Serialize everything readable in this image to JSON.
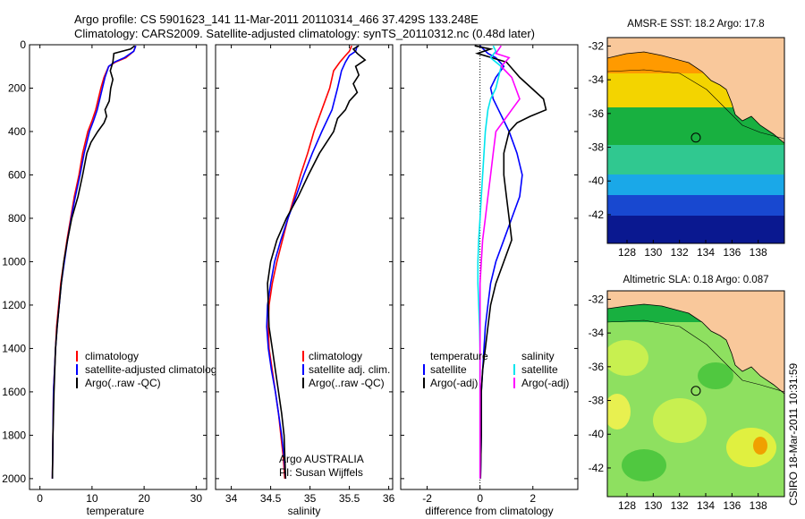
{
  "header": {
    "line1": "Argo profile: CS 5901623_141 11-Mar-2011 20110314_466 37.429S 133.248E",
    "line2": "Climatology: CARS2009. Satellite-adjusted climatology: synTS_20110312.nc (0.48d later)"
  },
  "colors": {
    "climatology": "#ff0000",
    "satellite": "#0000ff",
    "argo": "#000000",
    "argo_adj": "#ff00ff",
    "satellite_sal": "#00e5ee",
    "land": "#f9c89b"
  },
  "chart_data": [
    {
      "type": "line",
      "id": "temperature",
      "xlabel": "temperature",
      "xlim": [
        -2,
        32
      ],
      "ylim": [
        0,
        2050
      ],
      "xticks": [
        0,
        10,
        20,
        30
      ],
      "yticks": [
        0,
        200,
        400,
        600,
        800,
        1000,
        1200,
        1400,
        1600,
        1800,
        2000
      ],
      "y_reversed": true,
      "legend": [
        "climatology",
        "satellite-adjusted climatology",
        "Argo(..raw -QC)"
      ],
      "series": [
        {
          "name": "climatology",
          "color": "#ff0000",
          "x": [
            18.4,
            18.0,
            16.5,
            14.5,
            13.2,
            12.3,
            11.7,
            11.2,
            10.7,
            10.0,
            9.2,
            8.2,
            7.5,
            6.6,
            5.9,
            5.2,
            4.6,
            4.0,
            3.6,
            3.2,
            3.0,
            2.8,
            2.6,
            2.5,
            2.4
          ],
          "y": [
            5,
            30,
            60,
            80,
            100,
            150,
            200,
            250,
            300,
            350,
            400,
            500,
            600,
            700,
            800,
            900,
            1000,
            1100,
            1200,
            1300,
            1400,
            1500,
            1600,
            1800,
            2000
          ]
        },
        {
          "name": "satellite-adjusted climatology",
          "color": "#0000ff",
          "x": [
            18.4,
            18.0,
            16.2,
            14.3,
            13.2,
            12.5,
            12.0,
            11.5,
            11.0,
            10.3,
            9.5,
            8.5,
            7.7,
            6.8,
            6.0,
            5.3,
            4.7,
            4.1,
            3.7,
            3.3,
            3.0,
            2.8,
            2.6,
            2.5,
            2.4
          ],
          "y": [
            5,
            30,
            60,
            80,
            100,
            150,
            200,
            250,
            300,
            350,
            400,
            500,
            600,
            700,
            800,
            900,
            1000,
            1100,
            1200,
            1300,
            1400,
            1500,
            1600,
            1800,
            2000
          ]
        },
        {
          "name": "Argo(..raw -QC)",
          "color": "#000000",
          "x": [
            18.2,
            17.4,
            14.2,
            14.0,
            13.5,
            14.0,
            13.6,
            13.3,
            12.5,
            12.8,
            12.3,
            11.1,
            9.8,
            9.0,
            8.2,
            7.3,
            6.1,
            5.3,
            4.6,
            4.1,
            3.7,
            3.3,
            3.0,
            2.7,
            2.5,
            2.4
          ],
          "y": [
            5,
            20,
            40,
            80,
            120,
            160,
            200,
            260,
            300,
            330,
            360,
            400,
            450,
            500,
            600,
            700,
            800,
            900,
            1000,
            1100,
            1200,
            1300,
            1400,
            1600,
            1800,
            2000
          ]
        }
      ]
    },
    {
      "type": "line",
      "id": "salinity",
      "xlabel": "salinity",
      "xlim": [
        33.8,
        36.05
      ],
      "ylim": [
        0,
        2050
      ],
      "xticks": [
        34,
        34.5,
        35,
        35.5,
        36
      ],
      "xtick_labels": [
        "34",
        "34.5",
        "35",
        "35.5",
        "36"
      ],
      "y_reversed": true,
      "legend": [
        "climatology",
        "satellite adj. clim.",
        "Argo(..raw -QC)"
      ],
      "series": [
        {
          "name": "climatology",
          "color": "#ff0000",
          "x": [
            35.53,
            35.5,
            35.45,
            35.38,
            35.3,
            35.25,
            35.15,
            35.05,
            34.97,
            34.88,
            34.8,
            34.72,
            34.65,
            34.58,
            34.52,
            34.48,
            34.47,
            34.48,
            34.52,
            34.56,
            34.6,
            34.63,
            34.66,
            34.68
          ],
          "y": [
            5,
            30,
            50,
            80,
            120,
            200,
            300,
            400,
            500,
            600,
            700,
            800,
            900,
            1000,
            1100,
            1200,
            1300,
            1400,
            1500,
            1600,
            1700,
            1800,
            1900,
            2000
          ]
        },
        {
          "name": "satellite adj. clim.",
          "color": "#0000ff",
          "x": [
            35.6,
            35.58,
            35.5,
            35.45,
            35.4,
            35.35,
            35.28,
            35.15,
            35.03,
            34.92,
            34.82,
            34.72,
            34.63,
            34.55,
            34.5,
            34.46,
            34.45,
            34.47,
            34.51,
            34.56,
            34.6,
            34.64,
            34.67,
            34.69
          ],
          "y": [
            5,
            30,
            50,
            80,
            120,
            200,
            300,
            400,
            500,
            600,
            700,
            800,
            900,
            1000,
            1100,
            1200,
            1300,
            1400,
            1500,
            1600,
            1700,
            1800,
            1900,
            2000
          ]
        },
        {
          "name": "Argo(..raw -QC)",
          "color": "#000000",
          "x": [
            35.62,
            35.55,
            35.6,
            35.7,
            35.58,
            35.62,
            35.55,
            35.6,
            35.5,
            35.45,
            35.35,
            35.3,
            35.12,
            34.98,
            34.85,
            34.7,
            34.58,
            34.5,
            34.46,
            34.48,
            34.52,
            34.56,
            34.6,
            34.64,
            34.67,
            34.69
          ],
          "y": [
            5,
            20,
            40,
            70,
            100,
            140,
            180,
            220,
            260,
            300,
            340,
            400,
            500,
            600,
            700,
            800,
            900,
            1000,
            1100,
            1300,
            1400,
            1500,
            1600,
            1700,
            1800,
            2000
          ]
        }
      ],
      "annotations": [
        "Argo AUSTRALIA",
        "PI: Susan Wijffels"
      ]
    },
    {
      "type": "line",
      "id": "difference",
      "xlabel": "difference from climatology",
      "xlim": [
        -3,
        3.7
      ],
      "ylim": [
        0,
        2050
      ],
      "xticks": [
        -2,
        0,
        2
      ],
      "y_reversed": true,
      "zero_line": "dotted",
      "legend_temperature": [
        "temperature",
        "satellite",
        "Argo(-adj)"
      ],
      "legend_salinity": [
        "salinity",
        "satellite",
        "Argo(-adj)"
      ],
      "series": [
        {
          "name": "satellite",
          "group": "temperature",
          "color": "#0000ff",
          "x": [
            0,
            0.3,
            0.6,
            0.9,
            0.6,
            0.4,
            0.5,
            0.7,
            0.9,
            1.1,
            1.4,
            1.6,
            1.5,
            1.2,
            0.9,
            0.6,
            0.4,
            0.3,
            0.2,
            0.15,
            0.1,
            0.05,
            0.05,
            0.02
          ],
          "y": [
            5,
            40,
            60,
            100,
            150,
            200,
            250,
            300,
            350,
            400,
            500,
            600,
            700,
            800,
            900,
            1000,
            1100,
            1200,
            1300,
            1400,
            1500,
            1600,
            1800,
            2000
          ]
        },
        {
          "name": "Argo(-adj)",
          "group": "temperature",
          "color": "#000000",
          "x": [
            -0.2,
            0.4,
            -0.1,
            1.0,
            1.5,
            2.4,
            2.5,
            1.9,
            1.4,
            1.1,
            0.9,
            0.9,
            1.0,
            1.1,
            1.2,
            0.9,
            0.6,
            0.4,
            0.3,
            0.2,
            0.1,
            0.05,
            0.05,
            0.02
          ],
          "y": [
            5,
            20,
            40,
            80,
            150,
            250,
            300,
            330,
            360,
            400,
            500,
            600,
            700,
            800,
            900,
            1000,
            1100,
            1200,
            1300,
            1400,
            1500,
            1600,
            1800,
            2000
          ]
        },
        {
          "name": "satellite",
          "group": "salinity",
          "color": "#00e5ee",
          "x": [
            0.5,
            0.6,
            0.4,
            0.8,
            0.6,
            0.4,
            0.3,
            0.2,
            0.15,
            0.1,
            0.05,
            0.0,
            -0.05,
            -0.08,
            -0.08,
            -0.05,
            -0.02,
            0.0,
            0.0,
            0.0,
            0.0,
            0.0,
            0.0
          ],
          "y": [
            5,
            30,
            60,
            100,
            200,
            250,
            300,
            400,
            500,
            600,
            700,
            800,
            900,
            1000,
            1100,
            1200,
            1300,
            1400,
            1500,
            1600,
            1700,
            1800,
            2000
          ]
        },
        {
          "name": "Argo(-adj)",
          "group": "salinity",
          "color": "#ff00ff",
          "x": [
            0.8,
            0.6,
            1.1,
            0.8,
            1.2,
            1.5,
            1.2,
            0.9,
            0.6,
            0.5,
            0.4,
            0.3,
            0.2,
            0.1,
            0.05,
            0.0,
            0.0,
            0.0,
            0.0,
            0.0,
            0.0
          ],
          "y": [
            5,
            40,
            60,
            100,
            150,
            250,
            300,
            350,
            400,
            500,
            600,
            700,
            800,
            900,
            1000,
            1100,
            1200,
            1300,
            1400,
            1600,
            2000
          ]
        }
      ]
    },
    {
      "type": "heatmap",
      "id": "sst-map",
      "title": "AMSR-E SST: 18.2 Argo: 17.8",
      "xlim": [
        126.5,
        140
      ],
      "ylim": [
        -43.7,
        -31.5
      ],
      "xticks": [
        128,
        130,
        132,
        134,
        136,
        138
      ],
      "yticks": [
        -32,
        -34,
        -36,
        -38,
        -40,
        -42
      ],
      "marker": {
        "lon": 133.248,
        "lat": -37.429
      }
    },
    {
      "type": "heatmap",
      "id": "sla-map",
      "title": "Altimetric SLA: 0.18 Argo: 0.087",
      "xlim": [
        126.5,
        140
      ],
      "ylim": [
        -43.7,
        -31.5
      ],
      "xticks": [
        128,
        130,
        132,
        134,
        136,
        138
      ],
      "yticks": [
        -32,
        -34,
        -36,
        -38,
        -40,
        -42
      ],
      "marker": {
        "lon": 133.248,
        "lat": -37.429
      }
    }
  ],
  "footer": {
    "stamp": "CSIRO 18-Mar-2011 10:31:59"
  }
}
